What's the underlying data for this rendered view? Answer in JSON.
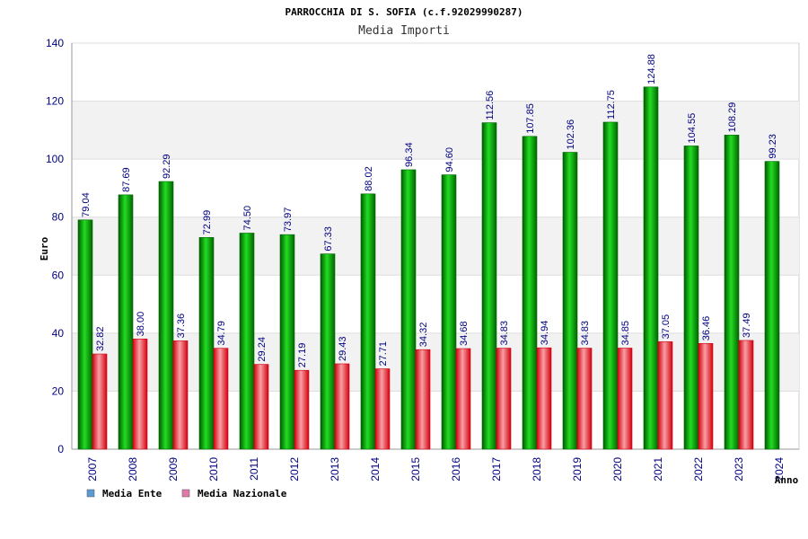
{
  "chart_data": {
    "type": "bar",
    "title": "PARROCCHIA DI S. SOFIA (c.f.92029990287)",
    "subtitle": "Media Importi",
    "ylabel": "Euro",
    "xlabel": "Anno",
    "ylim": [
      0,
      140
    ],
    "yticks": [
      0,
      20,
      40,
      60,
      80,
      100,
      120,
      140
    ],
    "grid": true,
    "legend": "bottom-left",
    "categories": [
      "2007",
      "2008",
      "2009",
      "2010",
      "2011",
      "2012",
      "2013",
      "2014",
      "2015",
      "2016",
      "2017",
      "2018",
      "2019",
      "2020",
      "2021",
      "2022",
      "2023",
      "2024"
    ],
    "series": [
      {
        "name": "Media Ente",
        "color": "#00b000",
        "values": [
          79.04,
          87.69,
          92.29,
          72.99,
          74.5,
          73.97,
          67.33,
          88.02,
          96.34,
          94.6,
          112.56,
          107.85,
          102.36,
          112.75,
          124.88,
          104.55,
          108.29,
          99.23
        ],
        "labels": [
          "79.04",
          "87.69",
          "92.29",
          "72.99",
          "74.50",
          "73.97",
          "67.33",
          "88.02",
          "96.34",
          "94.60",
          "112.56",
          "107.85",
          "102.36",
          "112.75",
          "124.88",
          "104.55",
          "108.29",
          "99.23"
        ]
      },
      {
        "name": "Media Nazionale",
        "color": "#e8000c",
        "values": [
          32.82,
          38.0,
          37.36,
          34.79,
          29.24,
          27.19,
          29.43,
          27.71,
          34.32,
          34.68,
          34.83,
          34.94,
          34.83,
          34.85,
          37.05,
          36.46,
          37.49,
          null
        ],
        "labels": [
          "32.82",
          "38.00",
          "37.36",
          "34.79",
          "29.24",
          "27.19",
          "29.43",
          "27.71",
          "34.32",
          "34.68",
          "34.83",
          "34.94",
          "34.83",
          "34.85",
          "37.05",
          "36.46",
          "37.49",
          null
        ]
      }
    ],
    "legend_colors": [
      "#5b9bd5",
      "#e07aa8"
    ]
  }
}
